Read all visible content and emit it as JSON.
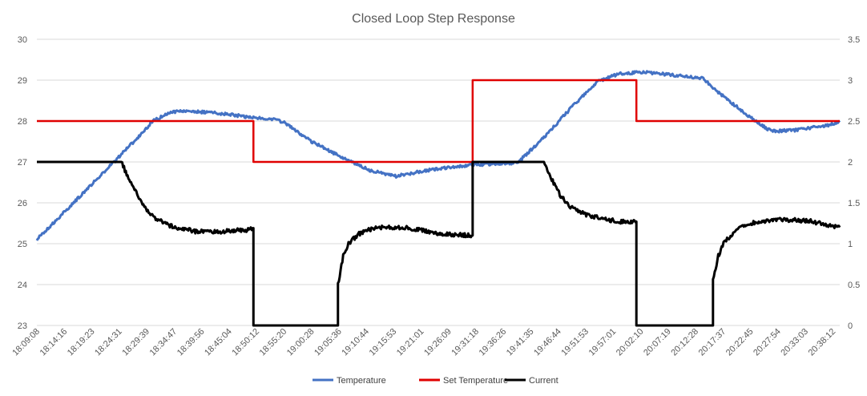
{
  "chart_data": {
    "type": "line",
    "title": "Closed Loop Step Response",
    "x_tick_labels": [
      "18:09:08",
      "18:14:16",
      "18:19:23",
      "18:24:31",
      "18:29:39",
      "18:34:47",
      "18:39:56",
      "18:45:04",
      "18:50:12",
      "18:55:20",
      "19:00:28",
      "19:05:36",
      "19:10:44",
      "19:15:53",
      "19:21:01",
      "19:26:09",
      "19:31:18",
      "19:36:26",
      "19:41:35",
      "19:46:44",
      "19:51:53",
      "19:57:01",
      "20:02:10",
      "20:07:19",
      "20:12:28",
      "20:17:37",
      "20:22:45",
      "20:27:54",
      "20:33:03",
      "20:38:12"
    ],
    "y_left": {
      "min": 23,
      "max": 30,
      "ticks": [
        23,
        24,
        25,
        26,
        27,
        28,
        29,
        30
      ]
    },
    "y_right": {
      "min": 0,
      "max": 3.5,
      "ticks": [
        0,
        0.5,
        1,
        1.5,
        2,
        2.5,
        3,
        3.5
      ]
    },
    "grid": true,
    "legend_position": "bottom",
    "x_units": "minutes after 18:09:08",
    "series": [
      {
        "name": "Temperature",
        "axis": "left",
        "color": "#4472c4",
        "x": [
          0,
          5,
          10,
          15,
          18,
          22,
          25,
          28,
          34,
          40,
          45,
          47,
          52,
          58,
          63,
          68,
          73,
          78,
          82,
          87,
          91,
          96,
          101,
          106,
          110,
          115,
          121,
          126,
          130,
          135,
          139,
          144,
          149,
          152
        ],
        "y": [
          25.1,
          25.75,
          26.4,
          27.05,
          27.45,
          28.0,
          28.2,
          28.25,
          28.2,
          28.1,
          28.05,
          27.95,
          27.5,
          27.1,
          26.8,
          26.65,
          26.78,
          26.86,
          26.92,
          26.96,
          26.98,
          27.6,
          28.3,
          28.95,
          29.15,
          29.2,
          29.12,
          29.05,
          28.6,
          28.1,
          27.75,
          27.78,
          27.88,
          27.97
        ]
      },
      {
        "name": "Set Temperature",
        "axis": "left",
        "color": "#e00000",
        "x": [
          0,
          41,
          41,
          82.5,
          82.5,
          113.5,
          113.5,
          152
        ],
        "y": [
          28,
          28,
          27,
          27,
          29,
          29,
          28,
          28
        ]
      },
      {
        "name": "Current",
        "axis": "right",
        "color": "#000000",
        "x": [
          0,
          16,
          17,
          19,
          20,
          22,
          25,
          30,
          35,
          40,
          41,
          41,
          57,
          57,
          58,
          59,
          61,
          64,
          70,
          76,
          82.5,
          82.5,
          96,
          97,
          99,
          101,
          104,
          110,
          113.5,
          113.5,
          128,
          128,
          129,
          130,
          132,
          135,
          140,
          146,
          152
        ],
        "y": [
          2,
          2,
          1.85,
          1.6,
          1.48,
          1.33,
          1.22,
          1.15,
          1.15,
          1.17,
          1.19,
          0,
          0,
          0.5,
          0.85,
          1.0,
          1.12,
          1.2,
          1.2,
          1.12,
          1.1,
          2,
          2,
          1.85,
          1.6,
          1.45,
          1.35,
          1.27,
          1.27,
          0,
          0,
          0.55,
          0.85,
          1.0,
          1.15,
          1.25,
          1.3,
          1.28,
          1.2
        ]
      }
    ],
    "legend": [
      "Temperature",
      "Set Temperature",
      "Current"
    ]
  }
}
